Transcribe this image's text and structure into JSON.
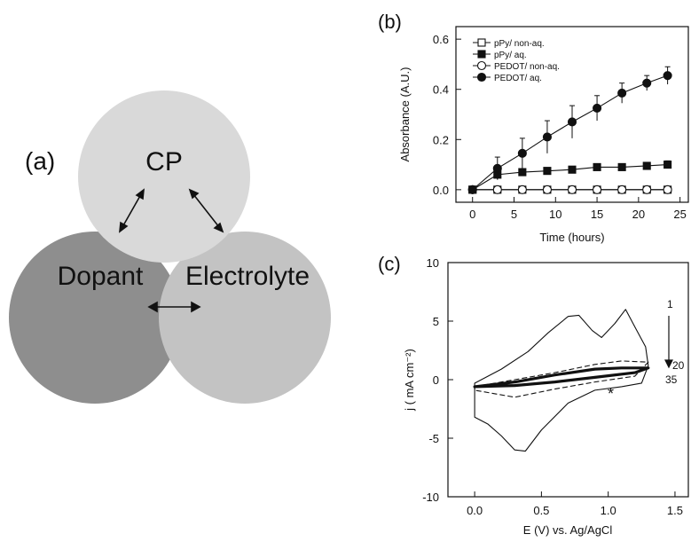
{
  "panel_a": {
    "label": "(a)",
    "circles": [
      {
        "name": "CP",
        "label": "CP",
        "color": "#d9d9d9"
      },
      {
        "name": "Dopant",
        "label": "Dopant",
        "color": "#8e8e8e"
      },
      {
        "name": "Electrolyte",
        "label": "Electrolyte",
        "color": "#c3c3c3"
      }
    ]
  },
  "panel_b": {
    "label": "(b)"
  },
  "panel_c": {
    "label": "(c)"
  },
  "chart_data": [
    {
      "type": "line",
      "panel": "(b)",
      "xlabel": "Time (hours)",
      "ylabel": "Absorbance (A.U.)",
      "xlim": [
        -2,
        26
      ],
      "ylim": [
        -0.05,
        0.65
      ],
      "xticks": [
        "0",
        "5",
        "10",
        "15",
        "20",
        "25"
      ],
      "xtick_values": [
        0,
        5,
        10,
        15,
        20,
        25
      ],
      "yticks": [
        "0.0",
        "0.2",
        "0.4",
        "0.6"
      ],
      "ytick_values": [
        0.0,
        0.2,
        0.4,
        0.6
      ],
      "legend_position": "top-left",
      "series": [
        {
          "name": "pPy/ non-aq.",
          "marker": "open-square",
          "x": [
            0,
            3,
            6,
            9,
            12,
            15,
            18,
            21,
            23.5
          ],
          "y": [
            0,
            0,
            0,
            0,
            0,
            0,
            0,
            0,
            0
          ],
          "err": [
            0,
            0,
            0,
            0,
            0,
            0,
            0,
            0,
            0
          ]
        },
        {
          "name": "pPy/ aq.",
          "marker": "filled-square",
          "x": [
            0,
            3,
            6,
            9,
            12,
            15,
            18,
            21,
            23.5
          ],
          "y": [
            0,
            0.06,
            0.07,
            0.075,
            0.08,
            0.09,
            0.09,
            0.095,
            0.1
          ],
          "err": [
            0,
            0.02,
            0.01,
            0.01,
            0.01,
            0.01,
            0.01,
            0.01,
            0.015
          ]
        },
        {
          "name": "PEDOT/ non-aq.",
          "marker": "open-circle",
          "x": [
            0,
            3,
            6,
            9,
            12,
            15,
            18,
            21,
            23.5
          ],
          "y": [
            0,
            0,
            0,
            0,
            0,
            0,
            0,
            0,
            0
          ],
          "err": [
            0,
            0,
            0,
            0,
            0,
            0,
            0,
            0,
            0
          ]
        },
        {
          "name": "PEDOT/ aq.",
          "marker": "filled-circle",
          "x": [
            0,
            3,
            6,
            9,
            12,
            15,
            18,
            21,
            23.5
          ],
          "y": [
            0,
            0.085,
            0.145,
            0.21,
            0.27,
            0.325,
            0.385,
            0.425,
            0.455
          ],
          "err": [
            0,
            0.045,
            0.06,
            0.065,
            0.065,
            0.05,
            0.04,
            0.03,
            0.035
          ]
        }
      ]
    },
    {
      "type": "line",
      "panel": "(c)",
      "xlabel": "E (V) vs. Ag/AgCl",
      "ylabel": "j ( mA cm⁻²)",
      "xlim": [
        -0.2,
        1.6
      ],
      "ylim": [
        -10,
        10
      ],
      "xticks": [
        "0.0",
        "0.5",
        "1.0",
        "1.5"
      ],
      "xtick_values": [
        0.0,
        0.5,
        1.0,
        1.5
      ],
      "yticks": [
        "-10",
        "-5",
        "0",
        "5",
        "10"
      ],
      "ytick_values": [
        -10,
        -5,
        0,
        5,
        10
      ],
      "annotations": {
        "cycle_first": "1",
        "cycle_mid": "20",
        "cycle_last": "35",
        "marker": "*"
      },
      "series": [
        {
          "name": "1",
          "weight": "thin",
          "x": [
            0.0,
            0.2,
            0.4,
            0.55,
            0.7,
            0.78,
            0.88,
            0.95,
            1.05,
            1.13,
            1.2,
            1.28,
            1.3,
            1.25,
            1.1,
            0.9,
            0.7,
            0.5,
            0.38,
            0.3,
            0.2,
            0.1,
            0.0
          ],
          "y": [
            -0.3,
            0.9,
            2.4,
            4.0,
            5.4,
            5.5,
            4.2,
            3.6,
            4.8,
            6.0,
            4.5,
            2.8,
            1.2,
            -0.3,
            -0.6,
            -0.9,
            -2.0,
            -4.3,
            -6.1,
            -6.0,
            -4.8,
            -3.8,
            -3.2
          ]
        },
        {
          "name": "20",
          "weight": "dashed",
          "x": [
            0.0,
            0.3,
            0.6,
            0.9,
            1.1,
            1.3,
            1.2,
            0.9,
            0.6,
            0.3,
            0.0
          ],
          "y": [
            -0.6,
            0.0,
            0.6,
            1.3,
            1.6,
            1.5,
            0.3,
            -0.2,
            -0.8,
            -1.5,
            -0.9
          ]
        },
        {
          "name": "35",
          "weight": "thick",
          "x": [
            0.0,
            0.3,
            0.6,
            0.9,
            1.1,
            1.3,
            1.2,
            0.9,
            0.6,
            0.3,
            0.0
          ],
          "y": [
            -0.6,
            -0.2,
            0.4,
            0.9,
            1.0,
            1.0,
            0.6,
            0.2,
            -0.2,
            -0.5,
            -0.6
          ]
        }
      ]
    }
  ]
}
